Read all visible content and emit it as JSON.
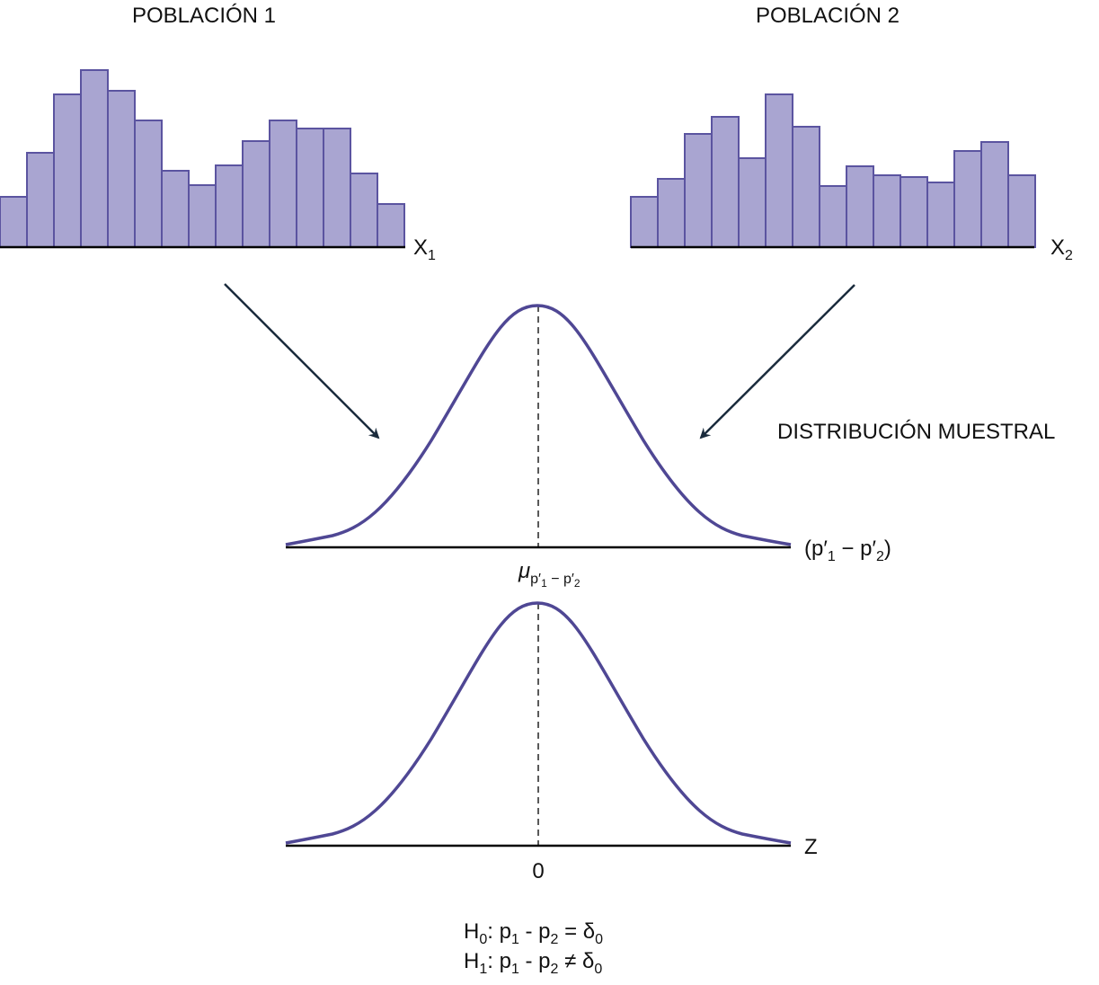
{
  "population_1": {
    "title": "POBLACIÓN 1",
    "axis_label": [
      {
        "text": "X"
      },
      {
        "sub": "1"
      }
    ]
  },
  "population_2": {
    "title": "POBLACIÓN 2",
    "axis_label": [
      {
        "text": "X"
      },
      {
        "sub": "2"
      }
    ]
  },
  "sampling_distribution": {
    "title": "DISTRIBUCIÓN MUESTRAL",
    "axis_label": [
      {
        "text": "(p′"
      },
      {
        "sub": "1"
      },
      {
        "text": " − p′"
      },
      {
        "sub": "2"
      },
      {
        "text": ")"
      }
    ],
    "center_label": [
      {
        "text": "μ"
      },
      {
        "sub": "p′"
      },
      {
        "subsub": "1"
      },
      {
        "sub": " − p′"
      },
      {
        "subsub": "2"
      }
    ]
  },
  "standard_normal": {
    "axis_label": [
      {
        "text": "Z"
      }
    ],
    "center_label": [
      {
        "text": "0"
      }
    ]
  },
  "hypotheses": [
    [
      {
        "text": "H"
      },
      {
        "sub": "0"
      },
      {
        "text": ": p"
      },
      {
        "sub": "1"
      },
      {
        "text": " - p"
      },
      {
        "sub": "2"
      },
      {
        "text": " = δ"
      },
      {
        "sub": "0"
      }
    ],
    [
      {
        "text": "H"
      },
      {
        "sub": "1"
      },
      {
        "text": ": p"
      },
      {
        "sub": "1"
      },
      {
        "text": " - p"
      },
      {
        "sub": "2"
      },
      {
        "text": " ≠ δ"
      },
      {
        "sub": "0"
      }
    ]
  ]
}
